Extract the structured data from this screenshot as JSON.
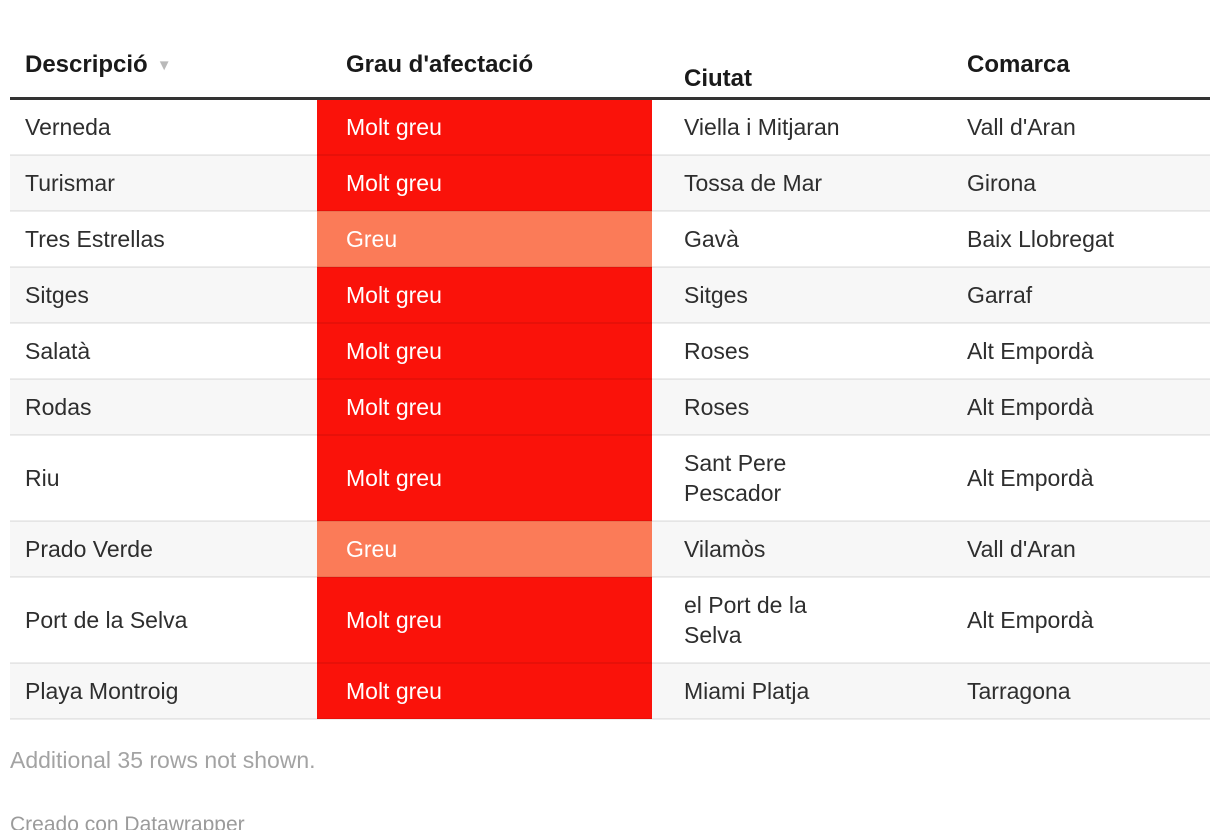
{
  "chart_data": {
    "type": "table",
    "columns": [
      "Descripció",
      "Grau d'afectació",
      "Ciutat",
      "Comarca"
    ],
    "rows": [
      [
        "Verneda",
        "Molt greu",
        "Viella i Mitjaran",
        "Vall d'Aran"
      ],
      [
        "Turismar",
        "Molt greu",
        "Tossa de Mar",
        "Girona"
      ],
      [
        "Tres Estrellas",
        "Greu",
        "Gavà",
        "Baix Llobregat"
      ],
      [
        "Sitges",
        "Molt greu",
        "Sitges",
        "Garraf"
      ],
      [
        "Salatà",
        "Molt greu",
        "Roses",
        "Alt Empordà"
      ],
      [
        "Rodas",
        "Molt greu",
        "Roses",
        "Alt Empordà"
      ],
      [
        "Riu",
        "Molt greu",
        "Sant Pere\nPescador",
        "Alt Empordà"
      ],
      [
        "Prado Verde",
        "Greu",
        "Vilamòs",
        "Vall d'Aran"
      ],
      [
        "Port de la Selva",
        "Molt greu",
        "el Port de la\nSelva",
        "Alt Empordà"
      ],
      [
        "Playa Montroig",
        "Molt greu",
        "Miami Platja",
        "Tarragona"
      ]
    ],
    "cell_colors": {
      "Molt greu": "#fa120a",
      "Greu": "#fb7b58"
    },
    "legend_position": "none",
    "grid": "horizontal-separators"
  },
  "header": {
    "sort_icon": "▼"
  },
  "footer": {
    "note": "Additional 35 rows not shown.",
    "attribution": "Creado con Datawrapper"
  }
}
